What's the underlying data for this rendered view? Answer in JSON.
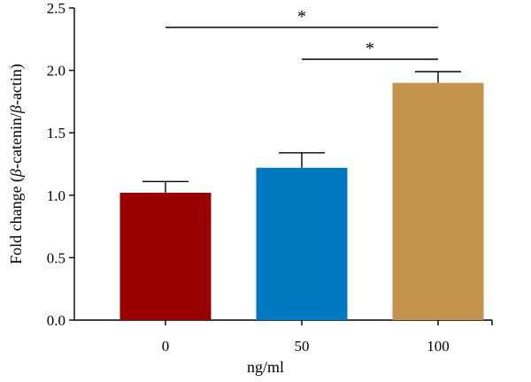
{
  "chart_data": {
    "type": "bar",
    "categories": [
      "0",
      "50",
      "100"
    ],
    "values": [
      1.02,
      1.22,
      1.9
    ],
    "errors": [
      0.09,
      0.12,
      0.09
    ],
    "colors": [
      "#990000",
      "#0079c1",
      "#c4934e"
    ],
    "xlabel": "ng/ml",
    "ylabel_prefix": "Fold change (",
    "ylabel_beta1": "β",
    "ylabel_mid": "-catenin/",
    "ylabel_beta2": "β",
    "ylabel_suffix": "-actin)",
    "ylim": [
      0,
      2.5
    ],
    "yticks": [
      "0.0",
      "0.5",
      "1.0",
      "1.5",
      "2.0",
      "2.5"
    ],
    "grid": false,
    "significance": [
      {
        "from": "0",
        "to": "100",
        "label": "*"
      },
      {
        "from": "50",
        "to": "100",
        "label": "*"
      }
    ]
  }
}
